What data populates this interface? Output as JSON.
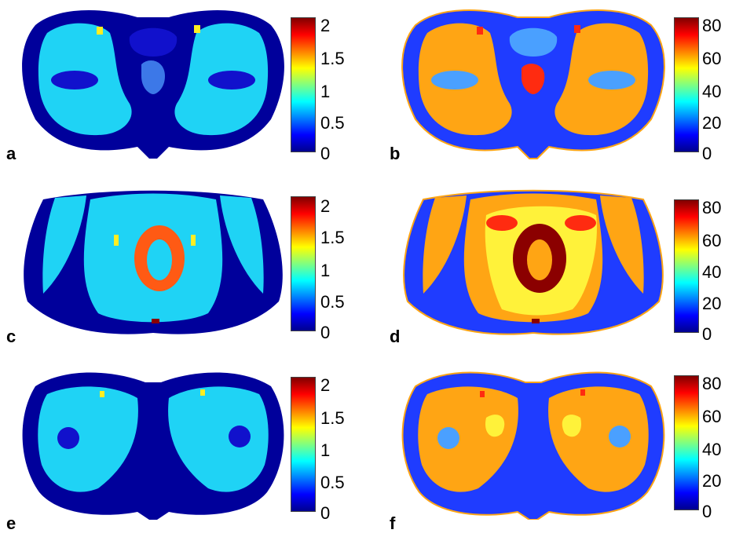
{
  "colormap_stops": [
    "#00008f",
    "#0000ff",
    "#0080ff",
    "#00ffff",
    "#80ff80",
    "#ffff00",
    "#ff8000",
    "#ff0000",
    "#800000"
  ],
  "tissue_colors": {
    "left_column": {
      "background": "#00009b",
      "tissue": "#1fd3f5",
      "dark": "#1111cc",
      "bright": "#ffee22",
      "hot": "#ff5a14",
      "hotter": "#8b0000",
      "mid": "#3c78e8"
    },
    "right_column": {
      "background": "#1f3cff",
      "tissue": "#ffa514",
      "dark": "#0000b8",
      "bright": "#fff23a",
      "hot": "#ff2b10",
      "hotter": "#8b0000",
      "mid": "#4aa0ff"
    }
  },
  "panels": [
    {
      "label": "a",
      "scale": "low",
      "ticks": [
        "2",
        "1.5",
        "1",
        "0.5",
        "0"
      ]
    },
    {
      "label": "b",
      "scale": "high",
      "ticks": [
        "80",
        "60",
        "40",
        "20",
        "0"
      ]
    },
    {
      "label": "c",
      "scale": "low",
      "ticks": [
        "2",
        "1.5",
        "1",
        "0.5",
        "0"
      ]
    },
    {
      "label": "d",
      "scale": "high",
      "ticks": [
        "80",
        "60",
        "40",
        "20",
        "0"
      ]
    },
    {
      "label": "e",
      "scale": "low",
      "ticks": [
        "2",
        "1.5",
        "1",
        "0.5",
        "0"
      ]
    },
    {
      "label": "f",
      "scale": "high",
      "ticks": [
        "80",
        "60",
        "40",
        "20",
        "0"
      ]
    }
  ]
}
